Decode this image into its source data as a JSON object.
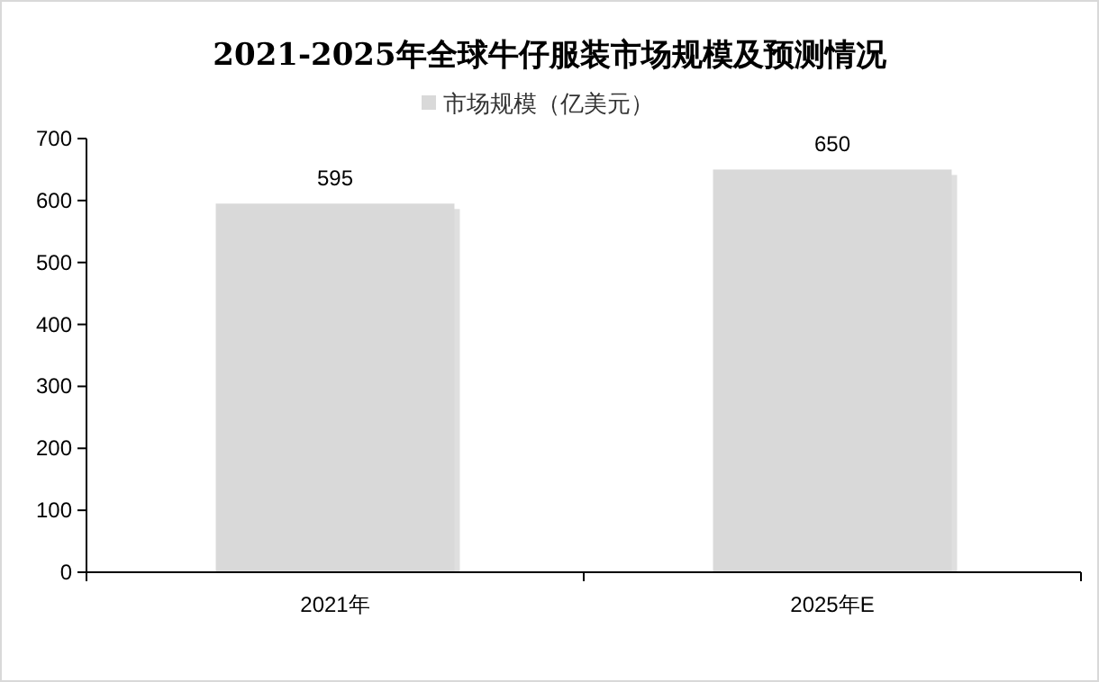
{
  "chart_data": {
    "type": "bar",
    "title": "2021-2025年全球牛仔服装市场规模及预测情况",
    "categories": [
      "2021年",
      "2025年E"
    ],
    "series": [
      {
        "name": "市场规模（亿美元）",
        "color": "#d9d9d9",
        "values": [
          595,
          650
        ]
      }
    ],
    "ylim": [
      0,
      700
    ],
    "yticks": [
      0,
      100,
      200,
      300,
      400,
      500,
      600,
      700
    ],
    "data_labels": true,
    "legend": "top",
    "grid": false
  }
}
